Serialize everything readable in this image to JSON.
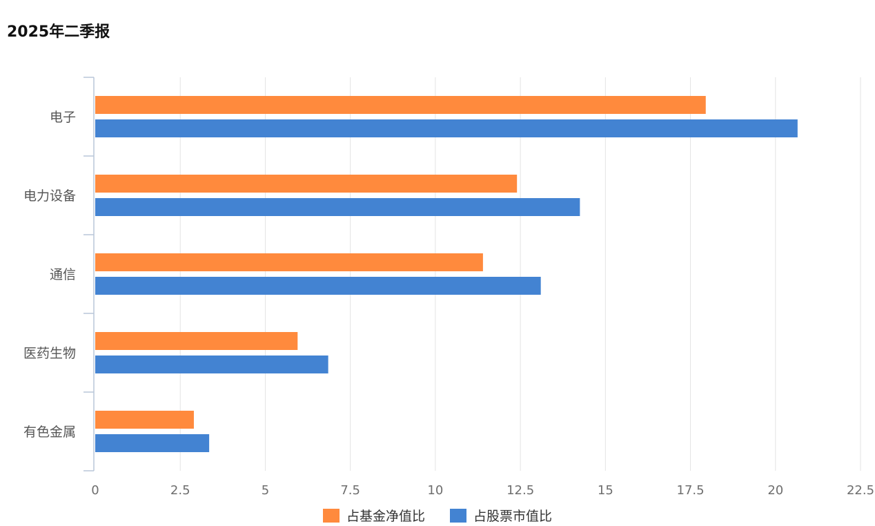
{
  "chart_data": {
    "type": "bar",
    "orientation": "horizontal",
    "title": "2025年二季报",
    "categories": [
      "电子",
      "电力设备",
      "通信",
      "医药生物",
      "有色金属"
    ],
    "series": [
      {
        "name": "占基金净值比",
        "color": "#FF8A3D",
        "values": [
          17.95,
          12.4,
          11.4,
          5.95,
          2.9
        ]
      },
      {
        "name": "占股票市值比",
        "color": "#4383D2",
        "values": [
          20.65,
          14.25,
          13.1,
          6.85,
          3.35
        ]
      }
    ],
    "xlim": [
      0,
      22.5
    ],
    "xticks": [
      0,
      2.5,
      5,
      7.5,
      10,
      12.5,
      15,
      17.5,
      20,
      22.5
    ],
    "xtick_labels": [
      "0",
      "2.5",
      "5",
      "7.5",
      "10",
      "12.5",
      "15",
      "17.5",
      "20",
      "22.5"
    ],
    "grid": true,
    "legend_position": "bottom"
  }
}
